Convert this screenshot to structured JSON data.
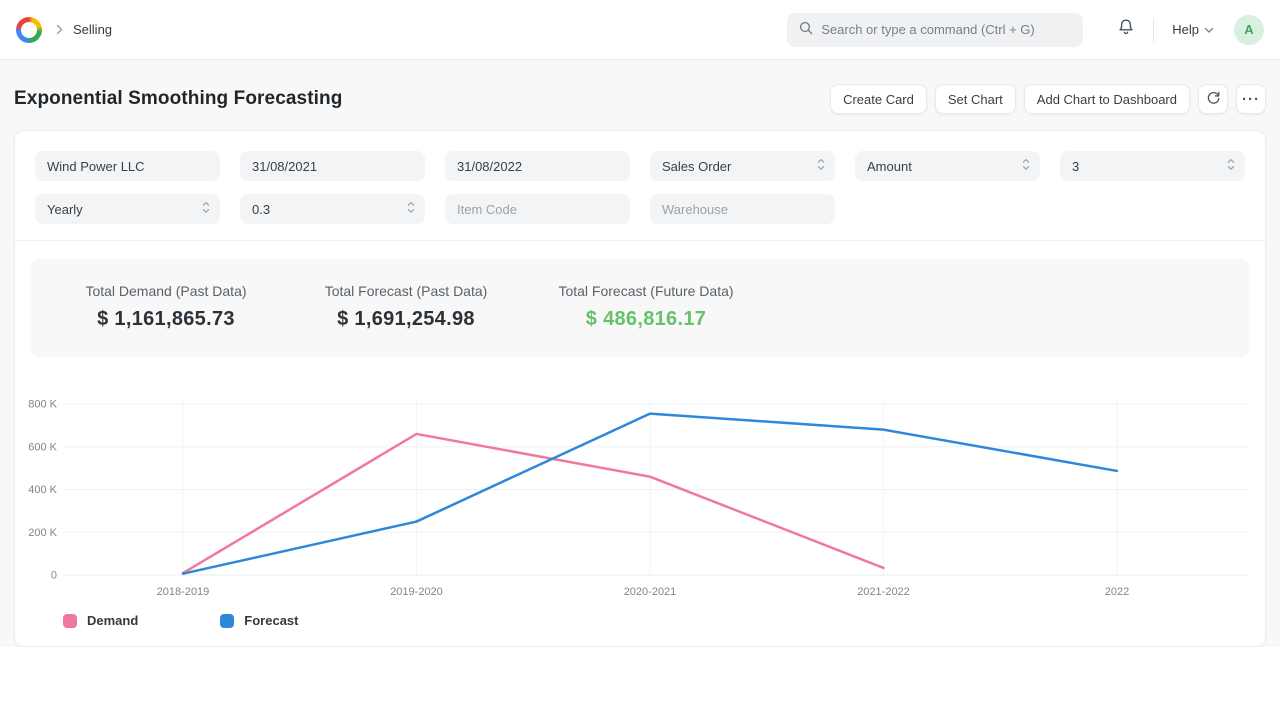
{
  "navbar": {
    "breadcrumb": "Selling",
    "search_placeholder": "Search or type a command (Ctrl + G)",
    "help_label": "Help",
    "avatar_initial": "A"
  },
  "page": {
    "title": "Exponential Smoothing Forecasting",
    "actions": {
      "create_card": "Create Card",
      "set_chart": "Set Chart",
      "add_chart_to_dashboard": "Add Chart to Dashboard",
      "refresh_icon": "refresh",
      "menu_icon": "···"
    }
  },
  "filters": [
    {
      "value": "Wind Power LLC"
    },
    {
      "value": "31/08/2021"
    },
    {
      "value": "31/08/2022"
    },
    {
      "value": "Sales Order",
      "select": true
    },
    {
      "value": "Amount",
      "select": true
    },
    {
      "value": "3",
      "select": true
    },
    {
      "value": "Yearly",
      "select": true
    },
    {
      "value": "0.3",
      "select": true
    },
    {
      "value": "Item Code",
      "placeholder": true
    },
    {
      "value": "Warehouse",
      "placeholder": true
    }
  ],
  "summary": {
    "items": [
      {
        "label": "Total Demand (Past Data)",
        "value": "$ 1,161,865.73",
        "color": "#2b3239"
      },
      {
        "label": "Total Forecast (Past Data)",
        "value": "$ 1,691,254.98",
        "color": "#2b3239"
      },
      {
        "label": "Total Forecast (Future Data)",
        "value": "$ 486,816.17",
        "color": "#66c16d"
      }
    ]
  },
  "chart_data": {
    "type": "line",
    "title": "",
    "xlabel": "",
    "ylabel": "",
    "categories": [
      "2018-2019",
      "2019-2020",
      "2020-2021",
      "2021-2022",
      "2022"
    ],
    "series": [
      {
        "name": "Demand",
        "color": "#f0789f",
        "values": [
          9000,
          660000,
          460000,
          33000,
          null
        ]
      },
      {
        "name": "Forecast",
        "color": "#2e87d8",
        "values": [
          6000,
          250000,
          755000,
          680000,
          486816.17
        ]
      }
    ],
    "ylim": [
      0,
      800000
    ],
    "yticks": [
      {
        "v": 0,
        "label": "0"
      },
      {
        "v": 200000,
        "label": "200 K"
      },
      {
        "v": 400000,
        "label": "400 K"
      },
      {
        "v": 600000,
        "label": "600 K"
      },
      {
        "v": 800000,
        "label": "800 K"
      }
    ],
    "grid": true,
    "legend_position": "bottom-left"
  }
}
